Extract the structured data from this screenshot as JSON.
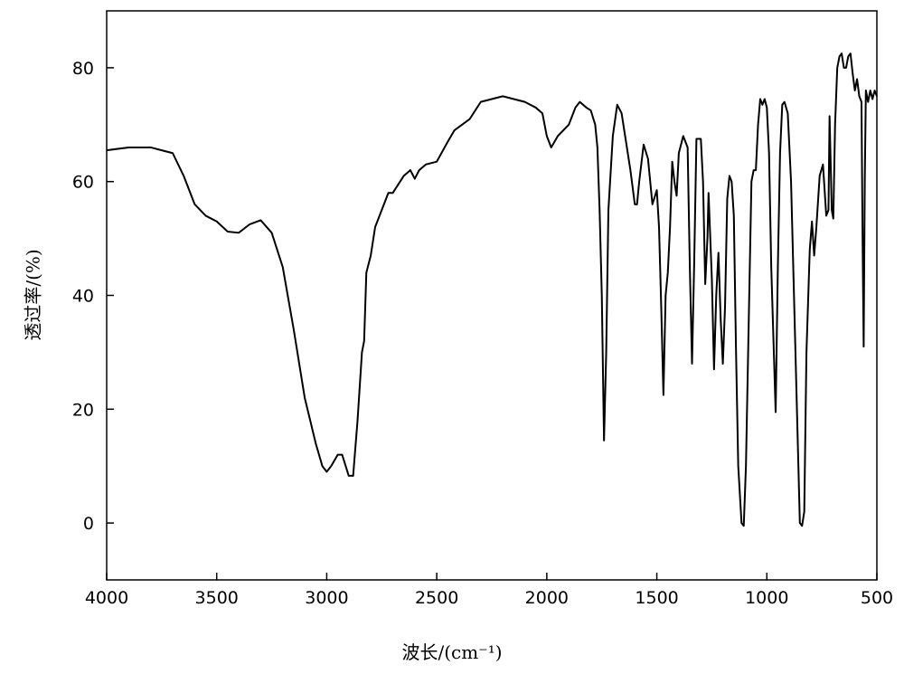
{
  "chart_data": {
    "type": "line",
    "x_label": "波长/(cm⁻¹)",
    "y_label": "透过率/(%)",
    "x": [
      4000,
      3900,
      3800,
      3750,
      3700,
      3650,
      3600,
      3550,
      3500,
      3450,
      3400,
      3350,
      3300,
      3250,
      3200,
      3150,
      3100,
      3050,
      3020,
      3000,
      2980,
      2950,
      2930,
      2900,
      2880,
      2860,
      2840,
      2830,
      2820,
      2800,
      2780,
      2750,
      2720,
      2700,
      2650,
      2620,
      2600,
      2580,
      2550,
      2500,
      2450,
      2420,
      2350,
      2300,
      2250,
      2200,
      2150,
      2100,
      2050,
      2020,
      2000,
      1980,
      1950,
      1900,
      1870,
      1850,
      1820,
      1800,
      1780,
      1770,
      1760,
      1750,
      1740,
      1730,
      1720,
      1700,
      1680,
      1660,
      1640,
      1620,
      1600,
      1590,
      1580,
      1560,
      1540,
      1520,
      1500,
      1490,
      1480,
      1470,
      1460,
      1450,
      1440,
      1430,
      1420,
      1410,
      1400,
      1380,
      1360,
      1350,
      1340,
      1330,
      1320,
      1300,
      1290,
      1280,
      1270,
      1265,
      1250,
      1240,
      1230,
      1220,
      1210,
      1200,
      1190,
      1180,
      1170,
      1160,
      1150,
      1140,
      1130,
      1115,
      1105,
      1095,
      1080,
      1070,
      1060,
      1050,
      1040,
      1030,
      1020,
      1010,
      1000,
      990,
      980,
      960,
      950,
      940,
      930,
      920,
      905,
      890,
      870,
      850,
      840,
      830,
      820,
      805,
      795,
      785,
      775,
      760,
      745,
      730,
      720,
      715,
      705,
      698,
      690,
      680,
      670,
      660,
      650,
      640,
      630,
      620,
      610,
      600,
      590,
      580,
      570,
      565,
      560,
      555,
      550,
      540,
      530,
      520,
      510,
      500
    ],
    "series": [
      {
        "color": "#000000",
        "values": [
          65.5,
          66,
          66,
          65.5,
          65,
          61,
          56,
          54,
          53,
          51.2,
          51,
          52.5,
          53.2,
          51,
          45,
          34,
          22,
          14,
          10,
          9,
          10,
          12,
          12,
          8.3,
          8.3,
          18,
          30,
          32,
          44,
          47,
          52,
          55,
          58,
          58,
          61,
          62,
          60.5,
          62,
          63,
          63.5,
          67,
          69,
          71,
          74,
          74.5,
          75,
          74.5,
          74,
          73,
          72,
          68,
          66,
          68,
          70,
          73,
          74,
          73,
          72.5,
          70,
          66,
          55,
          40,
          14.5,
          30,
          55,
          68,
          73.5,
          72,
          67,
          62,
          56,
          56,
          60,
          66.5,
          64,
          56,
          58.5,
          52,
          38,
          22.5,
          40,
          44,
          52,
          63.5,
          60,
          57.5,
          65,
          68,
          66,
          45,
          28,
          46,
          67.5,
          67.5,
          60,
          42,
          50,
          58,
          43,
          27,
          40,
          47.5,
          36,
          28,
          38,
          57,
          61,
          60,
          54,
          30,
          10,
          0,
          -0.5,
          10,
          40,
          60,
          62,
          62,
          70,
          74.5,
          73.5,
          74.5,
          73,
          65,
          45,
          19.5,
          45,
          65,
          73.5,
          74,
          72,
          60,
          30,
          0,
          -0.5,
          2,
          30,
          48,
          53,
          47,
          52,
          61,
          63,
          54,
          55,
          71.5,
          55,
          53.5,
          70,
          80,
          82,
          82.5,
          80,
          80,
          82,
          82.5,
          79,
          76,
          78,
          75,
          74,
          50,
          31,
          60,
          76,
          74,
          76,
          74.5,
          76,
          75
        ]
      }
    ],
    "xlim": [
      4000,
      500
    ],
    "xticks": [
      4000,
      3500,
      3000,
      2500,
      2000,
      1500,
      1000,
      500
    ],
    "ylim": [
      -10,
      90
    ],
    "yticks": [
      0,
      20,
      40,
      60,
      80
    ]
  }
}
